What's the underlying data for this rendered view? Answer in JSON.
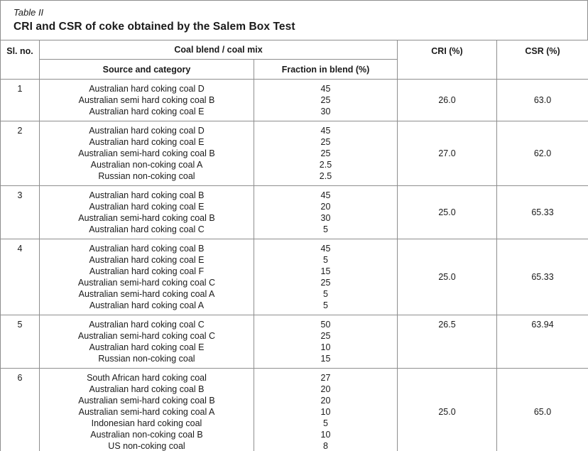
{
  "title": {
    "label": "Table II",
    "caption": "CRI and CSR of coke obtained by the Salem Box Test"
  },
  "colors": {
    "border": "#8e8e8e",
    "text": "#1a1a1a",
    "background": "#ffffff"
  },
  "table": {
    "columns": {
      "sl_no": "Sl. no.",
      "coal_blend_group": "Coal blend / coal mix",
      "source": "Source and category",
      "fraction": "Fraction in blend (%)",
      "cri": "CRI (%)",
      "csr": "CSR (%)"
    },
    "rows": [
      {
        "sl_no": "1",
        "components": [
          {
            "source": "Australian hard coking coal D",
            "fraction": "45"
          },
          {
            "source": "Australian semi hard coking coal B",
            "fraction": "25"
          },
          {
            "source": "Australian hard coking coal E",
            "fraction": "30"
          }
        ],
        "cri": "26.0",
        "csr": "63.0",
        "value_align": "middle"
      },
      {
        "sl_no": "2",
        "components": [
          {
            "source": "Australian hard coking coal D",
            "fraction": "45"
          },
          {
            "source": "Australian hard coking coal E",
            "fraction": "25"
          },
          {
            "source": "Australian semi-hard coking coal B",
            "fraction": "25"
          },
          {
            "source": "Australian non-coking coal A",
            "fraction": "2.5"
          },
          {
            "source": "Russian non-coking coal",
            "fraction": "2.5"
          }
        ],
        "cri": "27.0",
        "csr": "62.0",
        "value_align": "middle"
      },
      {
        "sl_no": "3",
        "components": [
          {
            "source": "Australian hard coking coal B",
            "fraction": "45"
          },
          {
            "source": "Australian hard coking coal E",
            "fraction": "20"
          },
          {
            "source": "Australian semi-hard coking coal B",
            "fraction": "30"
          },
          {
            "source": "Australian hard coking coal C",
            "fraction": "5"
          }
        ],
        "cri": "25.0",
        "csr": "65.33",
        "value_align": "middle"
      },
      {
        "sl_no": "4",
        "components": [
          {
            "source": "Australian hard coking coal B",
            "fraction": "45"
          },
          {
            "source": "Australian hard coking coal E",
            "fraction": "5"
          },
          {
            "source": "Australian hard coking coal F",
            "fraction": "15"
          },
          {
            "source": "Australian semi-hard coking coal C",
            "fraction": "25"
          },
          {
            "source": "Australian semi-hard coking coal A",
            "fraction": "5"
          },
          {
            "source": "Australian hard coking coal A",
            "fraction": "5"
          }
        ],
        "cri": "25.0",
        "csr": "65.33",
        "value_align": "middle"
      },
      {
        "sl_no": "5",
        "components": [
          {
            "source": "Australian hard coking coal C",
            "fraction": "50"
          },
          {
            "source": "Australian semi-hard coking coal C",
            "fraction": "25"
          },
          {
            "source": "Australian hard coking coal E",
            "fraction": "10"
          },
          {
            "source": "Russian non-coking coal",
            "fraction": "15"
          }
        ],
        "cri": "26.5",
        "csr": "63.94",
        "value_align": "top"
      },
      {
        "sl_no": "6",
        "components": [
          {
            "source": "South African hard coking coal",
            "fraction": "27"
          },
          {
            "source": "Australian hard coking coal B",
            "fraction": "20"
          },
          {
            "source": "Australian semi-hard coking coal B",
            "fraction": "20"
          },
          {
            "source": "Australian semi-hard coking coal A",
            "fraction": "10"
          },
          {
            "source": "Indonesian hard coking coal",
            "fraction": "5"
          },
          {
            "source": "Australian non-coking coal B",
            "fraction": "10"
          },
          {
            "source": "US non-coking coal",
            "fraction": "8"
          }
        ],
        "cri": "25.0",
        "csr": "65.0",
        "value_align": "middle"
      }
    ]
  }
}
